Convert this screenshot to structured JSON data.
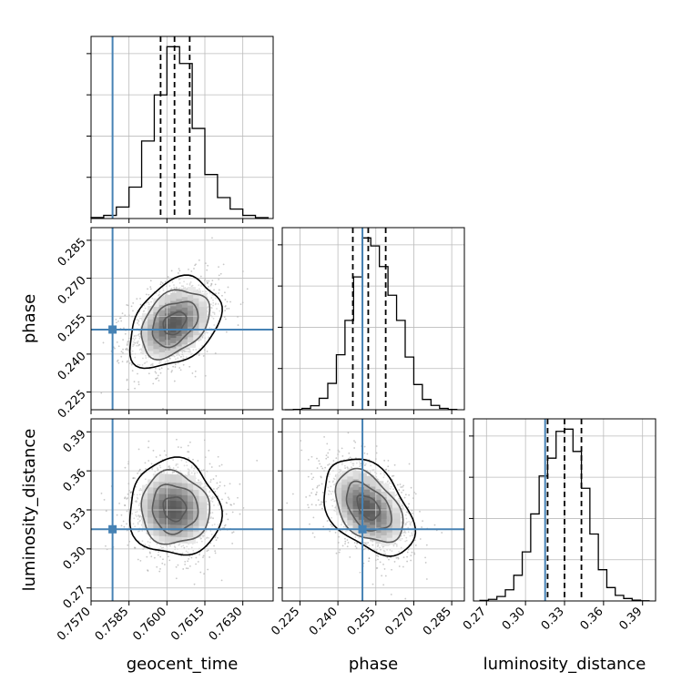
{
  "chart_data": {
    "type": "corner",
    "parameters": [
      "geocent_time",
      "phase",
      "luminosity_distance"
    ],
    "axis_labels": {
      "geocent_time": "geocent_time",
      "phase": "phase",
      "luminosity_distance": "luminosity_distance"
    },
    "ranges": {
      "geocent_time": [
        0.757,
        0.7642
      ],
      "phase": [
        0.218,
        0.29
      ],
      "luminosity_distance": [
        0.26,
        0.4
      ]
    },
    "ticks": {
      "geocent_time": [
        0.757,
        0.7585,
        0.76,
        0.7615,
        0.763
      ],
      "phase": [
        0.225,
        0.24,
        0.255,
        0.27,
        0.285
      ],
      "luminosity_distance": [
        0.27,
        0.3,
        0.33,
        0.36,
        0.39
      ]
    },
    "tick_labels": {
      "geocent_time": [
        "0.7570",
        "0.7585",
        "0.7600",
        "0.7615",
        "0.7630"
      ],
      "phase": [
        "0.225",
        "0.240",
        "0.255",
        "0.270",
        "0.285"
      ],
      "luminosity_distance": [
        "0.27",
        "0.30",
        "0.33",
        "0.36",
        "0.39"
      ]
    },
    "truths": {
      "geocent_time": 0.75785,
      "phase": 0.2497,
      "luminosity_distance": 0.3151
    },
    "quantiles": {
      "geocent_time": [
        0.75975,
        0.7603,
        0.7609
      ],
      "phase": [
        0.2459,
        0.252,
        0.2589
      ],
      "luminosity_distance": [
        0.317,
        0.33,
        0.343
      ]
    },
    "histograms": {
      "geocent_time": {
        "edges": [
          0.757,
          0.7575,
          0.758,
          0.7585,
          0.759,
          0.7595,
          0.76,
          0.7605,
          0.761,
          0.7615,
          0.762,
          0.7625,
          0.763,
          0.7635,
          0.764
        ],
        "counts": [
          0.5,
          1.5,
          5.5,
          15,
          37,
          59,
          82,
          74,
          43,
          21,
          10,
          4.5,
          1.5,
          0.4
        ]
      },
      "phase": {
        "edges": [
          0.219,
          0.2224,
          0.2258,
          0.2292,
          0.2326,
          0.236,
          0.2394,
          0.2428,
          0.2462,
          0.2496,
          0.253,
          0.2564,
          0.2598,
          0.2632,
          0.2666,
          0.27,
          0.2734,
          0.2768,
          0.2802,
          0.2836,
          0.287
        ],
        "counts": [
          0,
          0.3,
          1.2,
          3.5,
          10,
          23,
          48,
          78,
          116,
          150,
          143,
          125,
          100,
          78,
          46,
          22,
          9,
          3.8,
          1.2,
          0.3
        ]
      },
      "luminosity_distance": {
        "edges": [
          0.265,
          0.2715,
          0.278,
          0.2845,
          0.291,
          0.2975,
          0.304,
          0.3105,
          0.317,
          0.3235,
          0.33,
          0.3365,
          0.343,
          0.3495,
          0.356,
          0.3625,
          0.369,
          0.3755,
          0.382,
          0.3885,
          0.395
        ],
        "counts": [
          0.5,
          1.4,
          4,
          10,
          23,
          44,
          78,
          112,
          128,
          152,
          154,
          134,
          101,
          60,
          28,
          12,
          5,
          2.2,
          0.7,
          0.2
        ]
      }
    },
    "pairs": [
      {
        "x": "geocent_time",
        "y": "phase",
        "center": [
          0.7603,
          0.2522
        ],
        "sigma": [
          0.0009,
          0.0089
        ],
        "rho": 0.35
      },
      {
        "x": "geocent_time",
        "y": "luminosity_distance",
        "center": [
          0.7603,
          0.331
        ],
        "sigma": [
          0.0009,
          0.0185
        ],
        "rho": -0.05
      },
      {
        "x": "phase",
        "y": "luminosity_distance",
        "center": [
          0.252,
          0.332
        ],
        "sigma": [
          0.0089,
          0.0185
        ],
        "rho": -0.42
      }
    ],
    "contour_levels_sigma": [
      0.5,
      1.0,
      1.5,
      2.0
    ],
    "grid": true,
    "colors": {
      "truth": "#4682b4",
      "histogram": "#000000",
      "contour": "#000000",
      "grid": "#bbbbbb",
      "scatter": "#9a9a9a"
    }
  }
}
